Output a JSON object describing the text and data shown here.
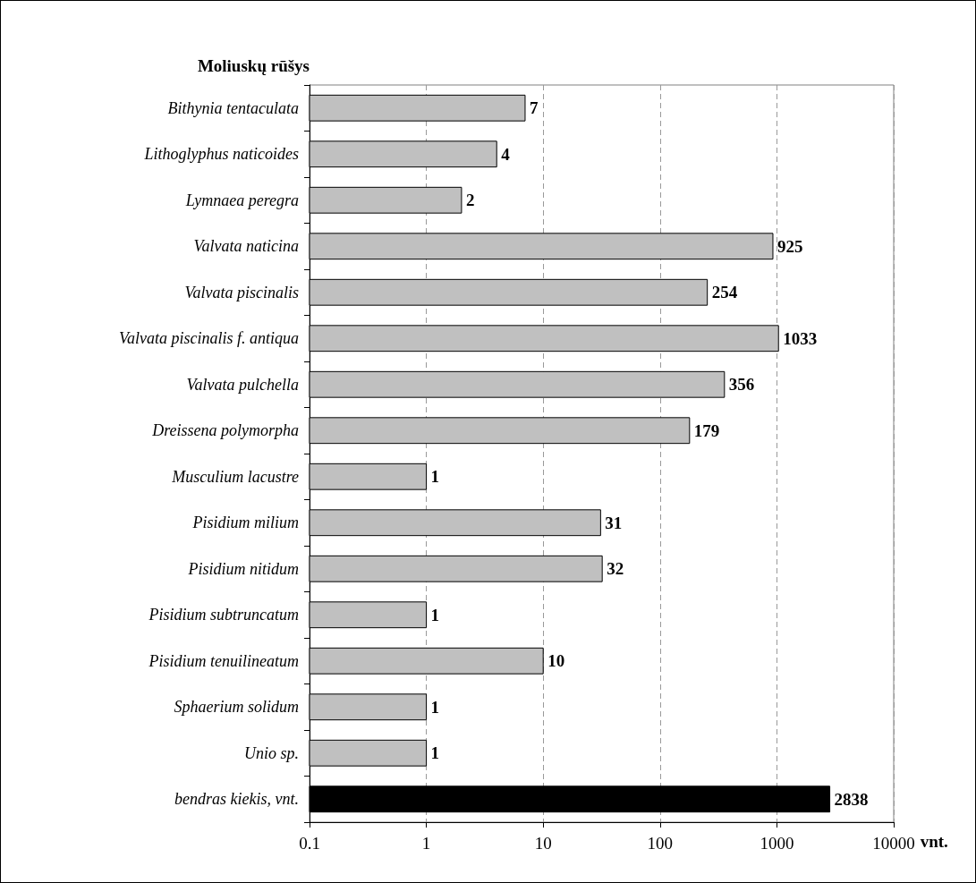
{
  "chart_data": {
    "type": "bar",
    "orientation": "horizontal",
    "ylabel": "Moliuskų rūšys",
    "xlabel": "vnt.",
    "categories": [
      "Bithynia tentaculata",
      "Lithoglyphus naticoides",
      "Lymnaea peregra",
      "Valvata naticina",
      "Valvata piscinalis",
      "Valvata piscinalis f. antiqua",
      "Valvata pulchella",
      "Dreissena polymorpha",
      "Musculium lacustre",
      "Pisidium milium",
      "Pisidium nitidum",
      "Pisidium subtruncatum",
      "Pisidium tenuilineatum",
      "Sphaerium solidum",
      "Unio sp.",
      "bendras kiekis, vnt."
    ],
    "values": [
      7,
      4,
      2,
      925,
      254,
      1033,
      356,
      179,
      1,
      31,
      32,
      1,
      10,
      1,
      1,
      2838
    ],
    "colors": [
      "#c0c0c0",
      "#c0c0c0",
      "#c0c0c0",
      "#c0c0c0",
      "#c0c0c0",
      "#c0c0c0",
      "#c0c0c0",
      "#c0c0c0",
      "#c0c0c0",
      "#c0c0c0",
      "#c0c0c0",
      "#c0c0c0",
      "#c0c0c0",
      "#c0c0c0",
      "#c0c0c0",
      "#000000"
    ],
    "log": "x",
    "xlim": [
      0.1,
      10000
    ],
    "xticks": [
      0.1,
      1,
      10,
      100,
      1000,
      10000
    ],
    "grid": "x",
    "data_labels": true
  }
}
